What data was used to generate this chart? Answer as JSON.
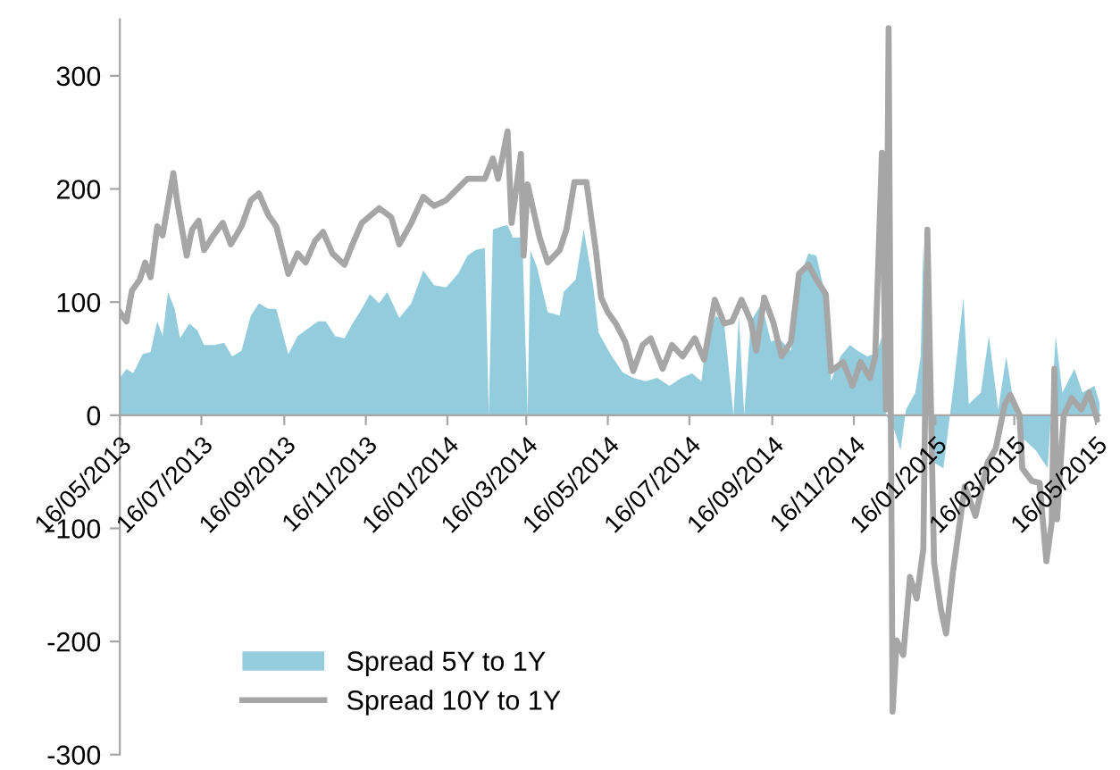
{
  "chart_data": {
    "type": "area",
    "ylim": [
      -300,
      350
    ],
    "yticks": [
      -300,
      -200,
      -100,
      0,
      100,
      200,
      300
    ],
    "xlim": [
      "2013-05-16",
      "2015-05-19"
    ],
    "xticks": [
      {
        "value": "2013-05-16",
        "label": "16/05/2013"
      },
      {
        "value": "2013-07-16",
        "label": "16/07/2013"
      },
      {
        "value": "2013-09-16",
        "label": "16/09/2013"
      },
      {
        "value": "2013-11-16",
        "label": "16/11/2013"
      },
      {
        "value": "2014-01-16",
        "label": "16/01/2014"
      },
      {
        "value": "2014-03-16",
        "label": "16/03/2014"
      },
      {
        "value": "2014-05-16",
        "label": "16/05/2014"
      },
      {
        "value": "2014-07-16",
        "label": "16/07/2014"
      },
      {
        "value": "2014-09-16",
        "label": "16/09/2014"
      },
      {
        "value": "2014-11-16",
        "label": "16/11/2014"
      },
      {
        "value": "2015-01-16",
        "label": "16/01/2015"
      },
      {
        "value": "2015-03-16",
        "label": "16/03/2015"
      },
      {
        "value": "2015-05-16",
        "label": "16/05/2015"
      }
    ],
    "grid": false,
    "legend": "bottom left",
    "series": [
      {
        "name": "Spread 5Y to 1Y",
        "color": "#93cddd",
        "x": [
          "2013-05-16",
          "2013-05-21",
          "2013-05-26",
          "2013-06-02",
          "2013-06-08",
          "2013-06-13",
          "2013-06-17",
          "2013-06-21",
          "2013-06-26",
          "2013-06-30",
          "2013-07-07",
          "2013-07-13",
          "2013-07-18",
          "2013-07-26",
          "2013-08-02",
          "2013-08-08",
          "2013-08-15",
          "2013-08-22",
          "2013-08-28",
          "2013-09-04",
          "2013-09-10",
          "2013-09-19",
          "2013-09-26",
          "2013-10-02",
          "2013-10-11",
          "2013-10-17",
          "2013-10-24",
          "2013-10-31",
          "2013-11-06",
          "2013-11-13",
          "2013-11-19",
          "2013-11-26",
          "2013-12-02",
          "2013-12-11",
          "2013-12-20",
          "2013-12-29",
          "2014-01-06",
          "2014-01-15",
          "2014-01-24",
          "2014-01-31",
          "2014-02-06",
          "2014-02-13",
          "2014-02-16",
          "2014-02-19",
          "2014-02-26",
          "2014-03-02",
          "2014-03-06",
          "2014-03-13",
          "2014-03-17",
          "2014-03-19",
          "2014-03-24",
          "2014-04-01",
          "2014-04-10",
          "2014-04-13",
          "2014-04-22",
          "2014-04-28",
          "2014-05-05",
          "2014-05-09",
          "2014-05-18",
          "2014-05-27",
          "2014-06-04",
          "2014-06-13",
          "2014-06-22",
          "2014-07-01",
          "2014-07-10",
          "2014-07-18",
          "2014-07-25",
          "2014-07-29",
          "2014-08-05",
          "2014-08-11",
          "2014-08-18",
          "2014-08-22",
          "2014-08-26",
          "2014-08-31",
          "2014-09-08",
          "2014-09-15",
          "2014-09-21",
          "2014-09-30",
          "2014-10-06",
          "2014-10-13",
          "2014-10-19",
          "2014-10-26",
          "2014-10-30",
          "2014-11-06",
          "2014-11-13",
          "2014-11-19",
          "2014-11-26",
          "2014-12-03",
          "2014-12-07",
          "2014-12-10",
          "2014-12-16",
          "2014-12-21",
          "2014-12-25",
          "2015-01-01",
          "2015-01-05",
          "2015-01-07",
          "2015-01-11",
          "2015-01-15",
          "2015-01-22",
          "2015-01-30",
          "2015-02-06",
          "2015-02-10",
          "2015-02-19",
          "2015-02-25",
          "2015-03-04",
          "2015-03-10",
          "2015-03-17",
          "2015-03-23",
          "2015-04-01",
          "2015-04-10",
          "2015-04-16",
          "2015-04-21",
          "2015-04-30",
          "2015-05-06",
          "2015-05-15",
          "2015-05-19"
        ],
        "values": [
          33,
          41,
          37,
          54,
          56,
          83,
          70,
          109,
          94,
          68,
          81,
          75,
          62,
          62,
          64,
          52,
          57,
          88,
          99,
          94,
          94,
          54,
          70,
          75,
          83,
          83,
          70,
          68,
          81,
          94,
          107,
          99,
          109,
          86,
          99,
          128,
          115,
          113,
          125,
          141,
          146,
          148,
          0,
          164,
          167,
          168,
          157,
          157,
          0,
          146,
          131,
          91,
          88,
          109,
          120,
          164,
          115,
          73,
          54,
          38,
          33,
          30,
          33,
          26,
          33,
          37,
          30,
          70,
          88,
          81,
          0,
          88,
          0,
          83,
          99,
          65,
          68,
          57,
          120,
          143,
          141,
          104,
          30,
          52,
          62,
          57,
          52,
          55,
          70,
          0,
          -12,
          -31,
          5,
          20,
          52,
          150,
          0,
          -42,
          -47,
          30,
          104,
          10,
          20,
          70,
          5,
          52,
          0,
          -21,
          -31,
          -47,
          70,
          20,
          41,
          20,
          26,
          10
        ]
      },
      {
        "name": "Spread 10Y to 1Y",
        "type": "line",
        "color": "#a6a6a6",
        "line_style": "solid",
        "marker": "none",
        "x": [
          "2013-05-16",
          "2013-05-21",
          "2013-05-25",
          "2013-05-31",
          "2013-06-04",
          "2013-06-08",
          "2013-06-13",
          "2013-06-17",
          "2013-06-25",
          "2013-06-28",
          "2013-07-05",
          "2013-07-09",
          "2013-07-14",
          "2013-07-18",
          "2013-07-25",
          "2013-08-01",
          "2013-08-07",
          "2013-08-15",
          "2013-08-22",
          "2013-08-28",
          "2013-09-04",
          "2013-09-10",
          "2013-09-19",
          "2013-09-26",
          "2013-10-02",
          "2013-10-09",
          "2013-10-15",
          "2013-10-22",
          "2013-10-31",
          "2013-11-06",
          "2013-11-13",
          "2013-11-26",
          "2013-12-05",
          "2013-12-11",
          "2013-12-20",
          "2013-12-29",
          "2014-01-06",
          "2014-01-15",
          "2014-01-31",
          "2014-02-13",
          "2014-02-19",
          "2014-02-23",
          "2014-03-02",
          "2014-03-05",
          "2014-03-12",
          "2014-03-14",
          "2014-03-17",
          "2014-03-21",
          "2014-03-26",
          "2014-04-01",
          "2014-04-10",
          "2014-04-15",
          "2014-04-21",
          "2014-04-30",
          "2014-05-07",
          "2014-05-11",
          "2014-05-16",
          "2014-05-22",
          "2014-05-29",
          "2014-06-04",
          "2014-06-11",
          "2014-06-17",
          "2014-06-26",
          "2014-07-03",
          "2014-07-11",
          "2014-07-20",
          "2014-07-27",
          "2014-08-04",
          "2014-08-11",
          "2014-08-17",
          "2014-08-24",
          "2014-08-31",
          "2014-09-04",
          "2014-09-10",
          "2014-09-17",
          "2014-09-23",
          "2014-09-30",
          "2014-10-06",
          "2014-10-13",
          "2014-10-19",
          "2014-10-26",
          "2014-10-30",
          "2014-11-08",
          "2014-11-15",
          "2014-11-21",
          "2014-11-28",
          "2014-12-02",
          "2014-12-07",
          "2014-12-10",
          "2014-12-12",
          "2014-12-15",
          "2014-12-18",
          "2014-12-23",
          "2014-12-28",
          "2015-01-02",
          "2015-01-07",
          "2015-01-10",
          "2015-01-15",
          "2015-01-20",
          "2015-01-24",
          "2015-01-29",
          "2015-02-07",
          "2015-02-15",
          "2015-02-24",
          "2015-03-02",
          "2015-03-09",
          "2015-03-13",
          "2015-03-20",
          "2015-03-22",
          "2015-03-29",
          "2015-04-04",
          "2015-04-09",
          "2015-04-13",
          "2015-04-15",
          "2015-04-17",
          "2015-04-22",
          "2015-04-28",
          "2015-05-05",
          "2015-05-11",
          "2015-05-17"
        ],
        "values": [
          91,
          83,
          110,
          120,
          135,
          122,
          167,
          159,
          214,
          188,
          141,
          164,
          172,
          146,
          159,
          170,
          151,
          167,
          190,
          196,
          177,
          167,
          125,
          143,
          135,
          154,
          162,
          143,
          133,
          151,
          170,
          183,
          175,
          151,
          170,
          193,
          185,
          190,
          209,
          209,
          227,
          209,
          251,
          170,
          231,
          141,
          204,
          183,
          157,
          135,
          146,
          164,
          206,
          206,
          146,
          104,
          91,
          81,
          65,
          39,
          62,
          68,
          41,
          62,
          52,
          68,
          49,
          102,
          81,
          83,
          102,
          83,
          57,
          104,
          81,
          52,
          65,
          125,
          133,
          120,
          107,
          39,
          47,
          26,
          47,
          33,
          52,
          232,
          5,
          342,
          -262,
          -199,
          -212,
          -143,
          -162,
          -118,
          164,
          -130,
          -171,
          -193,
          -140,
          -63,
          -89,
          -42,
          -30,
          10,
          18,
          0,
          -47,
          -58,
          -60,
          -129,
          -95,
          41,
          -92,
          0,
          15,
          5,
          20,
          -4
        ]
      }
    ]
  }
}
